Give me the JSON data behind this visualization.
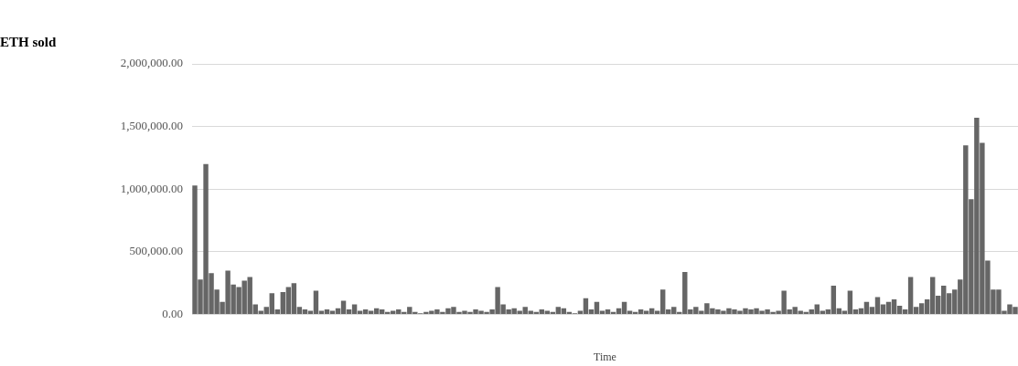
{
  "chart_data": {
    "type": "bar",
    "title": "ETH sold",
    "xlabel": "Time",
    "categories": [
      null,
      null,
      null,
      null,
      null,
      null,
      null,
      null,
      null,
      null,
      null,
      null,
      null,
      null,
      null,
      null,
      null,
      null,
      null,
      null,
      null,
      null,
      null,
      null,
      null,
      null,
      null,
      null,
      null,
      null,
      null,
      null,
      null,
      null,
      null,
      null,
      null,
      null,
      null,
      null,
      null,
      null,
      null,
      null,
      null,
      null,
      null,
      null,
      null,
      null,
      null,
      null,
      null,
      null,
      null,
      null,
      null,
      null,
      null,
      null,
      null,
      null,
      null,
      null,
      null,
      null,
      null,
      null,
      null,
      null,
      null,
      null,
      null,
      null,
      null,
      null,
      null,
      null,
      null,
      null,
      null,
      null,
      null,
      null,
      null,
      null,
      null,
      null,
      null,
      null,
      null,
      null,
      null,
      null,
      null,
      null,
      null,
      null,
      null,
      null,
      null,
      null,
      null,
      null,
      null,
      null,
      null,
      null,
      null,
      null,
      null,
      null,
      null,
      null,
      null,
      null,
      null,
      null,
      null,
      null,
      null,
      null,
      null,
      null,
      null,
      null,
      null,
      null,
      null,
      null,
      null,
      null,
      null,
      null,
      null,
      null,
      null,
      null,
      null,
      null,
      null,
      null,
      null,
      null,
      null,
      null,
      null,
      null,
      null,
      null
    ],
    "values": [
      1030000,
      280000,
      1200000,
      330000,
      200000,
      100000,
      350000,
      240000,
      220000,
      270000,
      300000,
      80000,
      30000,
      60000,
      170000,
      40000,
      180000,
      220000,
      250000,
      60000,
      40000,
      30000,
      190000,
      30000,
      40000,
      30000,
      50000,
      110000,
      40000,
      80000,
      30000,
      40000,
      30000,
      50000,
      40000,
      20000,
      30000,
      40000,
      20000,
      60000,
      20000,
      10000,
      20000,
      30000,
      40000,
      20000,
      50000,
      60000,
      20000,
      30000,
      20000,
      40000,
      30000,
      20000,
      40000,
      220000,
      80000,
      40000,
      50000,
      30000,
      60000,
      30000,
      20000,
      40000,
      30000,
      20000,
      60000,
      50000,
      20000,
      10000,
      30000,
      130000,
      40000,
      100000,
      30000,
      40000,
      20000,
      50000,
      100000,
      30000,
      20000,
      40000,
      30000,
      50000,
      30000,
      200000,
      40000,
      60000,
      20000,
      340000,
      40000,
      60000,
      30000,
      90000,
      50000,
      40000,
      30000,
      50000,
      40000,
      30000,
      50000,
      40000,
      50000,
      30000,
      40000,
      20000,
      30000,
      190000,
      40000,
      60000,
      30000,
      20000,
      40000,
      80000,
      30000,
      40000,
      230000,
      50000,
      30000,
      190000,
      40000,
      50000,
      100000,
      60000,
      140000,
      80000,
      100000,
      120000,
      70000,
      40000,
      300000,
      60000,
      90000,
      120000,
      300000,
      150000,
      230000,
      170000,
      200000,
      280000,
      1350000,
      920000,
      1570000,
      1370000,
      430000,
      200000,
      200000,
      30000,
      80000,
      60000
    ],
    "color": "#666666",
    "ylim": [
      0,
      2000000
    ],
    "yticks": [
      {
        "value": 0,
        "label": "0.00"
      },
      {
        "value": 500000,
        "label": "500,000.00"
      },
      {
        "value": 1000000,
        "label": "1,000,000.00"
      },
      {
        "value": 1500000,
        "label": "1,500,000.00"
      },
      {
        "value": 2000000,
        "label": "2,000,000.00"
      }
    ],
    "grid": "y",
    "legend": false
  }
}
